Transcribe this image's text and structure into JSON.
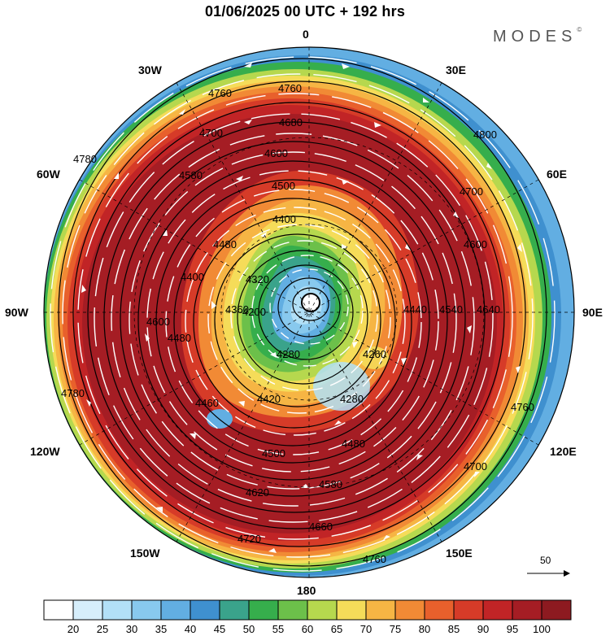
{
  "header": {
    "title": "01/06/2025  00 UTC  + 192 hrs",
    "brand": "MODES",
    "brand_mark": "©"
  },
  "longitude_labels": {
    "n": "0",
    "e30": "30E",
    "e60": "60E",
    "e90": "90E",
    "e120": "120E",
    "e150": "150E",
    "s": "180",
    "w150": "150W",
    "w120": "120W",
    "w90": "90W",
    "w60": "60W",
    "w30": "30W"
  },
  "reference_vector": {
    "label": "50"
  },
  "colorbar": {
    "labels": [
      "20",
      "25",
      "30",
      "35",
      "40",
      "45",
      "50",
      "55",
      "60",
      "65",
      "70",
      "75",
      "80",
      "85",
      "90",
      "95",
      "100"
    ],
    "colors": [
      "#ffffff",
      "#d6eefb",
      "#b2e0f7",
      "#88c9ee",
      "#62aee2",
      "#3f90cf",
      "#3aa38b",
      "#36ae4c",
      "#6cc04a",
      "#b6d84e",
      "#f5dc59",
      "#f6b544",
      "#f18a35",
      "#e8602c",
      "#d63b28",
      "#c12426",
      "#a51d24",
      "#8d1a20"
    ]
  },
  "contour_labels": [
    "4760",
    "4760",
    "4680",
    "4700",
    "4600",
    "4580",
    "4500",
    "4400",
    "4480",
    "4320",
    "4400",
    "4360",
    "4200",
    "4280",
    "4260",
    "4440",
    "4540",
    "4600",
    "4640",
    "4700",
    "4800",
    "4460",
    "4420",
    "4280",
    "4480",
    "4500",
    "4580",
    "4620",
    "4660",
    "4720",
    "4760",
    "4780",
    "4600",
    "4480",
    "4760",
    "4780",
    "4700"
  ],
  "colors": {
    "outer_ring": "#62aee2",
    "green_band": "#36ae4c",
    "dark_red": "#a51d24",
    "core_blue": "#88c9ee"
  }
}
